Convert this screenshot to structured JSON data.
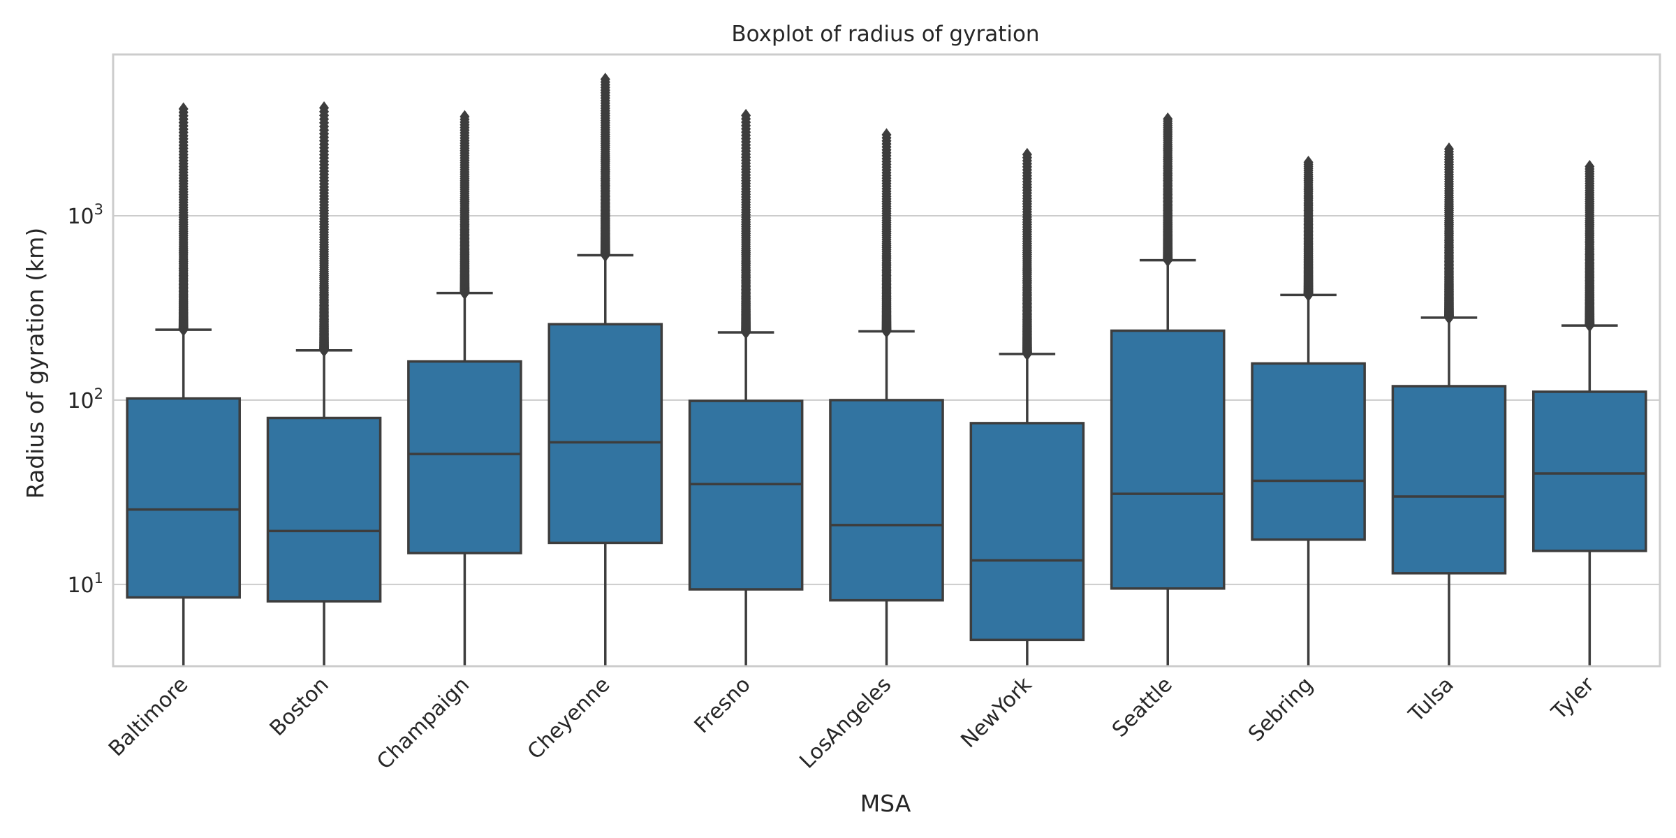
{
  "chart_data": {
    "type": "box",
    "title": "Boxplot of radius of gyration",
    "xlabel": "MSA",
    "ylabel": "Radius of gyration (km)",
    "yscale": "log",
    "ylim": [
      3.6,
      7500
    ],
    "yticks": [
      {
        "value": 10,
        "base": "10",
        "exp": "1"
      },
      {
        "value": 100,
        "base": "10",
        "exp": "2"
      },
      {
        "value": 1000,
        "base": "10",
        "exp": "3"
      }
    ],
    "grid": "y",
    "box_color": "#3274a1",
    "line_color": "#3d3d3d",
    "categories": [
      "Baltimore",
      "Boston",
      "Champaign",
      "Cheyenne",
      "Fresno",
      "LosAngeles",
      "NewYork",
      "Seattle",
      "Sebring",
      "Tulsa",
      "Tyler"
    ],
    "boxes": [
      {
        "name": "Baltimore",
        "whislo": 3.6,
        "q1": 8.5,
        "med": 25.5,
        "q3": 102,
        "whishi": 241,
        "flier_max": 3800
      },
      {
        "name": "Boston",
        "whislo": 3.6,
        "q1": 8.1,
        "med": 19.5,
        "q3": 80,
        "whishi": 186,
        "flier_max": 3850
      },
      {
        "name": "Champaign",
        "whislo": 3.6,
        "q1": 14.8,
        "med": 51,
        "q3": 162,
        "whishi": 381,
        "flier_max": 3450
      },
      {
        "name": "Cheyenne",
        "whislo": 3.6,
        "q1": 16.8,
        "med": 59,
        "q3": 258,
        "whishi": 611,
        "flier_max": 5500
      },
      {
        "name": "Fresno",
        "whislo": 3.6,
        "q1": 9.4,
        "med": 35,
        "q3": 99,
        "whishi": 233,
        "flier_max": 3500
      },
      {
        "name": "LosAngeles",
        "whislo": 3.6,
        "q1": 8.2,
        "med": 21,
        "q3": 100,
        "whishi": 236,
        "flier_max": 2750
      },
      {
        "name": "NewYork",
        "whislo": 3.6,
        "q1": 5.0,
        "med": 13.5,
        "q3": 75,
        "whishi": 178,
        "flier_max": 2150
      },
      {
        "name": "Seattle",
        "whislo": 3.6,
        "q1": 9.5,
        "med": 31,
        "q3": 238,
        "whishi": 574,
        "flier_max": 3350
      },
      {
        "name": "Sebring",
        "whislo": 3.6,
        "q1": 17.5,
        "med": 36.5,
        "q3": 158,
        "whishi": 372,
        "flier_max": 1950
      },
      {
        "name": "Tulsa",
        "whislo": 3.6,
        "q1": 11.5,
        "med": 30,
        "q3": 119,
        "whishi": 280,
        "flier_max": 2300
      },
      {
        "name": "Tyler",
        "whislo": 3.6,
        "q1": 15.2,
        "med": 40,
        "q3": 111,
        "whishi": 254,
        "flier_max": 1850
      }
    ]
  }
}
